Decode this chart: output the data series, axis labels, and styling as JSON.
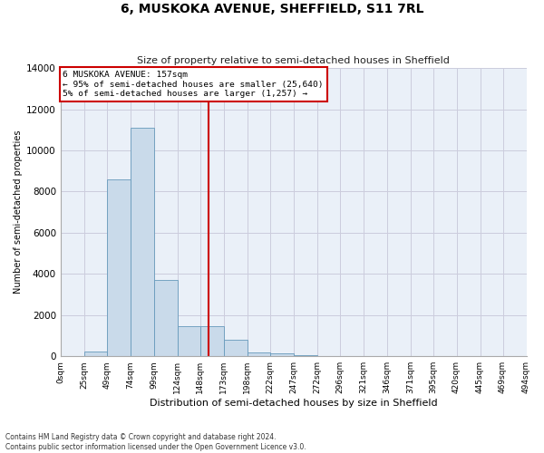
{
  "title": "6, MUSKOKA AVENUE, SHEFFIELD, S11 7RL",
  "subtitle": "Size of property relative to semi-detached houses in Sheffield",
  "xlabel": "Distribution of semi-detached houses by size in Sheffield",
  "ylabel": "Number of semi-detached properties",
  "footer_line1": "Contains HM Land Registry data © Crown copyright and database right 2024.",
  "footer_line2": "Contains public sector information licensed under the Open Government Licence v3.0.",
  "annotation_title": "6 MUSKOKA AVENUE: 157sqm",
  "annotation_line1": "← 95% of semi-detached houses are smaller (25,640)",
  "annotation_line2": "5% of semi-detached houses are larger (1,257) →",
  "property_size": 157,
  "bar_color": "#c9daea",
  "bar_edge_color": "#6699bb",
  "vline_color": "#cc0000",
  "annotation_box_color": "#ffffff",
  "annotation_box_edge": "#cc0000",
  "bins": [
    0,
    25,
    49,
    74,
    99,
    124,
    148,
    173,
    198,
    222,
    247,
    272,
    296,
    321,
    346,
    371,
    395,
    420,
    445,
    469,
    494
  ],
  "bin_labels": [
    "0sqm",
    "25sqm",
    "49sqm",
    "74sqm",
    "99sqm",
    "124sqm",
    "148sqm",
    "173sqm",
    "198sqm",
    "222sqm",
    "247sqm",
    "272sqm",
    "296sqm",
    "321sqm",
    "346sqm",
    "371sqm",
    "395sqm",
    "420sqm",
    "445sqm",
    "469sqm",
    "494sqm"
  ],
  "counts": [
    0,
    230,
    8600,
    11100,
    3700,
    1450,
    1450,
    800,
    200,
    130,
    50,
    20,
    10,
    5,
    3,
    2,
    1,
    0,
    0,
    0
  ],
  "ylim": [
    0,
    14000
  ],
  "yticks": [
    0,
    2000,
    4000,
    6000,
    8000,
    10000,
    12000,
    14000
  ],
  "grid_color": "#ccccdd",
  "bg_color": "#eaf0f8"
}
